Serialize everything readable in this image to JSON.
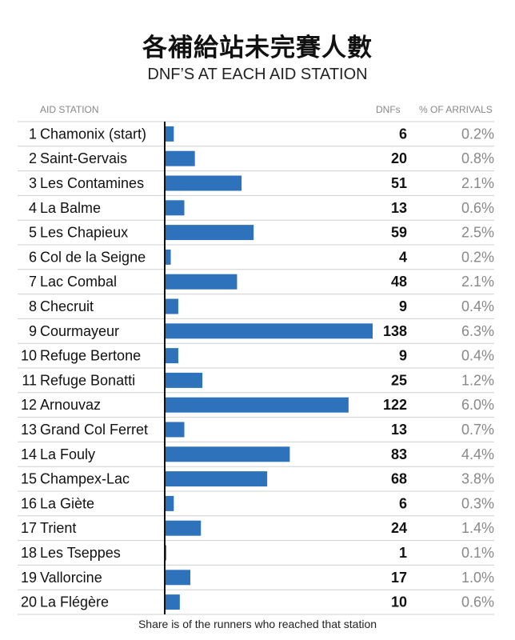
{
  "title": "各補給站未完賽人數",
  "subtitle": "DNF’S AT EACH AID STATION",
  "columns": {
    "station": "AID STATION",
    "dnfs": "DNFs",
    "pct": "% OF ARRIVALS"
  },
  "footnote": "Share is of the runners who reached that station",
  "colors": {
    "bar": "#2f72bc",
    "divider": "#d0d0d0",
    "axis": "#111111",
    "pct_text": "#888888"
  },
  "chart_data": {
    "type": "bar",
    "orientation": "horizontal",
    "categories": [
      "Chamonix (start)",
      "Saint-Gervais",
      "Les Contamines",
      "La Balme",
      "Les Chapieux",
      "Col de la Seigne",
      "Lac Combal",
      "Checruit",
      "Courmayeur",
      "Refuge Bertone",
      "Refuge Bonatti",
      "Arnouvaz",
      "Grand Col Ferret",
      "La Fouly",
      "Champex-Lac",
      "La Giète",
      "Trient",
      "Les Tseppes",
      "Vallorcine",
      "La Flégère"
    ],
    "ranks": [
      "1",
      "2",
      "3",
      "4",
      "5",
      "6",
      "7",
      "8",
      "9",
      "10",
      "11",
      "12",
      "13",
      "14",
      "15",
      "16",
      "17",
      "18",
      "19",
      "20"
    ],
    "values": [
      6,
      20,
      51,
      13,
      59,
      4,
      48,
      9,
      138,
      9,
      25,
      122,
      13,
      83,
      68,
      6,
      24,
      1,
      17,
      10
    ],
    "value_labels": [
      "6",
      "20",
      "51",
      "13",
      "59",
      "4",
      "48",
      "9",
      "138",
      "9",
      "25",
      "122",
      "13",
      "83",
      "68",
      "6",
      "24",
      "1",
      "17",
      "10"
    ],
    "pct_labels": [
      "0.2%",
      "0.8%",
      "2.1%",
      "0.6%",
      "2.5%",
      "0.2%",
      "2.1%",
      "0.4%",
      "6.3%",
      "0.4%",
      "1.2%",
      "6.0%",
      "0.7%",
      "4.4%",
      "3.8%",
      "0.3%",
      "1.4%",
      "0.1%",
      "1.0%",
      "0.6%"
    ],
    "xlim": [
      0,
      138
    ],
    "grid": false
  }
}
